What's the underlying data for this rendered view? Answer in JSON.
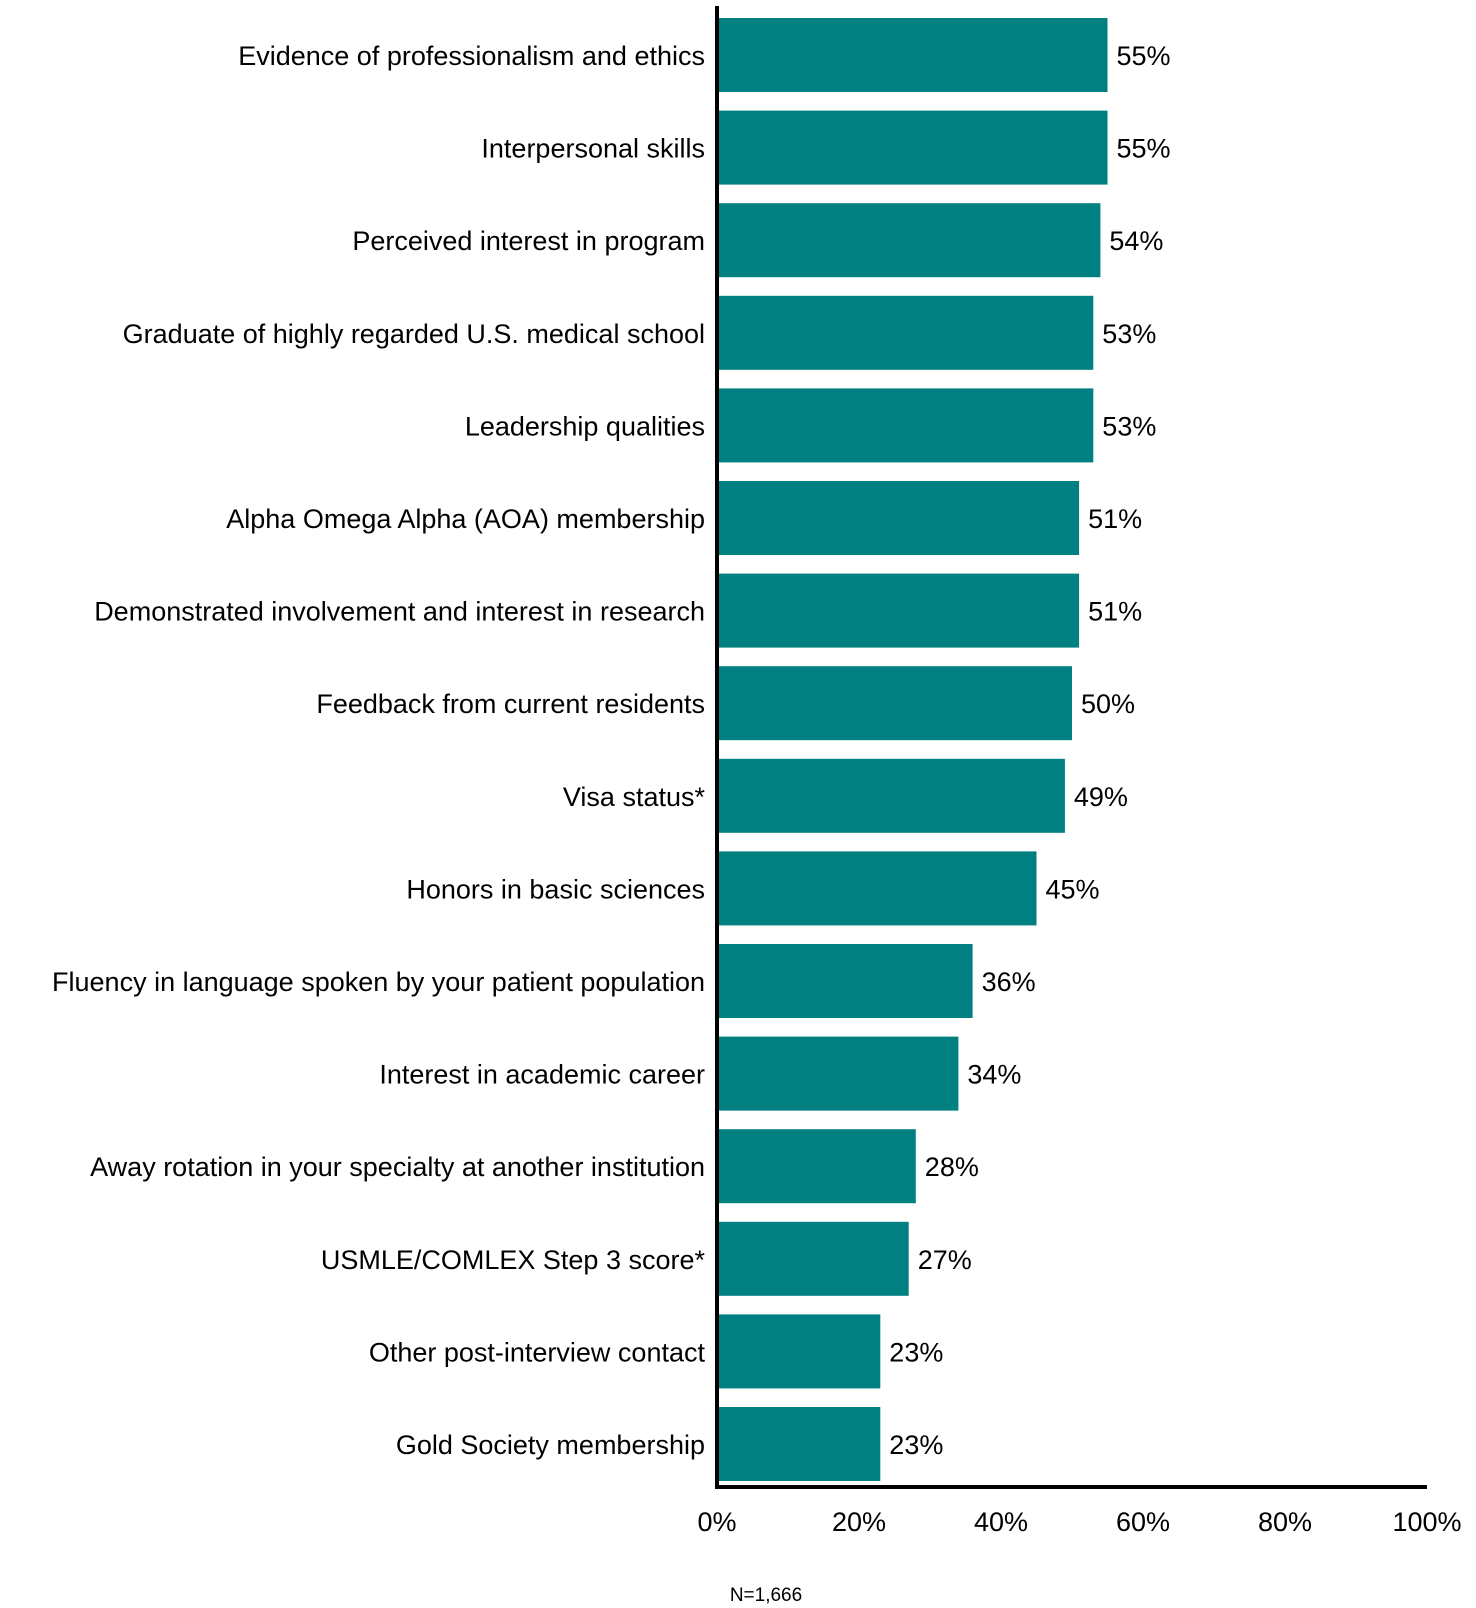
{
  "chart_data": {
    "type": "bar",
    "orientation": "horizontal",
    "categories": [
      "Evidence of professionalism and ethics",
      "Interpersonal skills",
      "Perceived interest in program",
      "Graduate of highly regarded U.S. medical school",
      "Leadership qualities",
      "Alpha Omega Alpha (AOA) membership",
      "Demonstrated involvement and interest in research",
      "Feedback from current residents",
      "Visa status*",
      "Honors in basic sciences",
      "Fluency in language spoken by your patient population",
      "Interest in academic career",
      "Away rotation in your specialty at another institution",
      "USMLE/COMLEX Step 3 score*",
      "Other post-interview contact",
      "Gold Society membership"
    ],
    "values": [
      55,
      55,
      54,
      53,
      53,
      51,
      51,
      50,
      49,
      45,
      36,
      34,
      28,
      27,
      23,
      23
    ],
    "value_labels": [
      "55%",
      "55%",
      "54%",
      "53%",
      "53%",
      "51%",
      "51%",
      "50%",
      "49%",
      "45%",
      "36%",
      "34%",
      "28%",
      "27%",
      "23%",
      "23%"
    ],
    "xlim": [
      0,
      100
    ],
    "x_ticks": [
      0,
      20,
      40,
      60,
      80,
      100
    ],
    "x_tick_labels": [
      "0%",
      "20%",
      "40%",
      "60%",
      "80%",
      "100%"
    ],
    "grid": false,
    "legend": "none",
    "bar_color": "#008080",
    "note": "N=1,666"
  }
}
